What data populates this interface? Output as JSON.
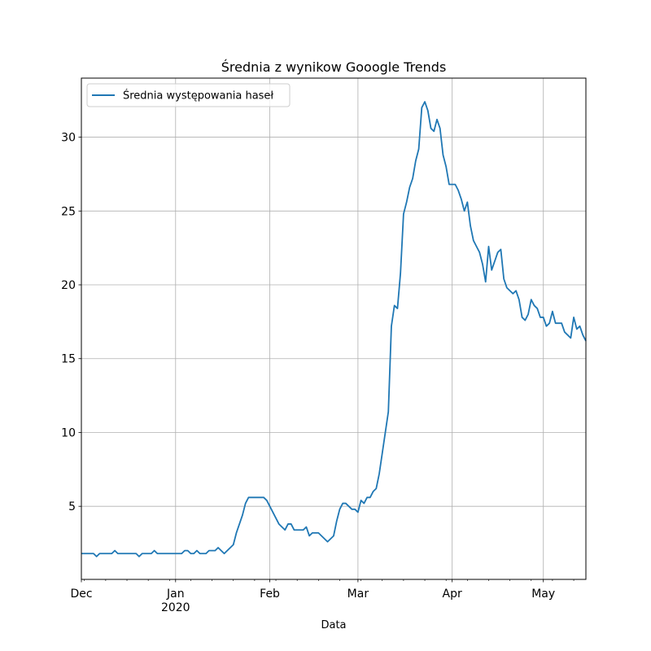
{
  "chart_data": {
    "type": "line",
    "title": "Średnia z wynikow Gooogle Trends",
    "xlabel": "Data",
    "ylabel": "",
    "xlim": [
      "2019-12-01",
      "2020-05-15"
    ],
    "ylim": [
      0.05,
      34
    ],
    "yticks": [
      5,
      10,
      15,
      20,
      25,
      30
    ],
    "xticks": [
      {
        "date": "2019-12-01",
        "label": "Dec",
        "sublabel": ""
      },
      {
        "date": "2020-01-01",
        "label": "Jan",
        "sublabel": "2020"
      },
      {
        "date": "2020-02-01",
        "label": "Feb",
        "sublabel": ""
      },
      {
        "date": "2020-03-01",
        "label": "Mar",
        "sublabel": ""
      },
      {
        "date": "2020-04-01",
        "label": "Apr",
        "sublabel": ""
      },
      {
        "date": "2020-05-01",
        "label": "May",
        "sublabel": ""
      }
    ],
    "grid": true,
    "legend_position": "top-left",
    "series": [
      {
        "name": "Średnia występowania haseł",
        "color": "#1f77b4",
        "points": [
          [
            "2019-12-01",
            1.8
          ],
          [
            "2019-12-03",
            1.8
          ],
          [
            "2019-12-05",
            1.8
          ],
          [
            "2019-12-06",
            1.6
          ],
          [
            "2019-12-07",
            1.8
          ],
          [
            "2019-12-09",
            1.8
          ],
          [
            "2019-12-11",
            1.8
          ],
          [
            "2019-12-12",
            2.0
          ],
          [
            "2019-12-13",
            1.8
          ],
          [
            "2019-12-15",
            1.8
          ],
          [
            "2019-12-17",
            1.8
          ],
          [
            "2019-12-19",
            1.8
          ],
          [
            "2019-12-20",
            1.6
          ],
          [
            "2019-12-21",
            1.8
          ],
          [
            "2019-12-23",
            1.8
          ],
          [
            "2019-12-24",
            1.8
          ],
          [
            "2019-12-25",
            2.0
          ],
          [
            "2019-12-26",
            1.8
          ],
          [
            "2019-12-28",
            1.8
          ],
          [
            "2019-12-30",
            1.8
          ],
          [
            "2020-01-01",
            1.8
          ],
          [
            "2020-01-03",
            1.8
          ],
          [
            "2020-01-04",
            2.0
          ],
          [
            "2020-01-05",
            2.0
          ],
          [
            "2020-01-06",
            1.8
          ],
          [
            "2020-01-07",
            1.8
          ],
          [
            "2020-01-08",
            2.0
          ],
          [
            "2020-01-09",
            1.8
          ],
          [
            "2020-01-11",
            1.8
          ],
          [
            "2020-01-12",
            2.0
          ],
          [
            "2020-01-14",
            2.0
          ],
          [
            "2020-01-15",
            2.2
          ],
          [
            "2020-01-17",
            1.8
          ],
          [
            "2020-01-19",
            2.2
          ],
          [
            "2020-01-20",
            2.4
          ],
          [
            "2020-01-21",
            3.2
          ],
          [
            "2020-01-22",
            3.8
          ],
          [
            "2020-01-23",
            4.4
          ],
          [
            "2020-01-24",
            5.2
          ],
          [
            "2020-01-25",
            5.6
          ],
          [
            "2020-01-27",
            5.6
          ],
          [
            "2020-01-29",
            5.6
          ],
          [
            "2020-01-30",
            5.6
          ],
          [
            "2020-01-31",
            5.4
          ],
          [
            "2020-02-01",
            5.0
          ],
          [
            "2020-02-02",
            4.6
          ],
          [
            "2020-02-03",
            4.2
          ],
          [
            "2020-02-04",
            3.8
          ],
          [
            "2020-02-06",
            3.4
          ],
          [
            "2020-02-07",
            3.8
          ],
          [
            "2020-02-08",
            3.8
          ],
          [
            "2020-02-09",
            3.4
          ],
          [
            "2020-02-10",
            3.4
          ],
          [
            "2020-02-12",
            3.4
          ],
          [
            "2020-02-13",
            3.6
          ],
          [
            "2020-02-14",
            3.0
          ],
          [
            "2020-02-15",
            3.2
          ],
          [
            "2020-02-17",
            3.2
          ],
          [
            "2020-02-18",
            3.0
          ],
          [
            "2020-02-20",
            2.6
          ],
          [
            "2020-02-22",
            3.0
          ],
          [
            "2020-02-23",
            4.0
          ],
          [
            "2020-02-24",
            4.8
          ],
          [
            "2020-02-25",
            5.2
          ],
          [
            "2020-02-26",
            5.2
          ],
          [
            "2020-02-27",
            5.0
          ],
          [
            "2020-02-28",
            4.8
          ],
          [
            "2020-02-29",
            4.8
          ],
          [
            "2020-03-01",
            4.6
          ],
          [
            "2020-03-02",
            5.4
          ],
          [
            "2020-03-03",
            5.2
          ],
          [
            "2020-03-04",
            5.6
          ],
          [
            "2020-03-05",
            5.6
          ],
          [
            "2020-03-06",
            6.0
          ],
          [
            "2020-03-07",
            6.2
          ],
          [
            "2020-03-08",
            7.2
          ],
          [
            "2020-03-09",
            8.6
          ],
          [
            "2020-03-10",
            10.0
          ],
          [
            "2020-03-11",
            11.4
          ],
          [
            "2020-03-12",
            17.2
          ],
          [
            "2020-03-13",
            18.6
          ],
          [
            "2020-03-14",
            18.4
          ],
          [
            "2020-03-15",
            20.8
          ],
          [
            "2020-03-16",
            24.8
          ],
          [
            "2020-03-17",
            25.6
          ],
          [
            "2020-03-18",
            26.6
          ],
          [
            "2020-03-19",
            27.2
          ],
          [
            "2020-03-20",
            28.4
          ],
          [
            "2020-03-21",
            29.2
          ],
          [
            "2020-03-22",
            32.0
          ],
          [
            "2020-03-23",
            32.4
          ],
          [
            "2020-03-24",
            31.8
          ],
          [
            "2020-03-25",
            30.6
          ],
          [
            "2020-03-26",
            30.4
          ],
          [
            "2020-03-27",
            31.2
          ],
          [
            "2020-03-28",
            30.6
          ],
          [
            "2020-03-29",
            28.8
          ],
          [
            "2020-03-30",
            28.0
          ],
          [
            "2020-03-31",
            26.8
          ],
          [
            "2020-04-02",
            26.8
          ],
          [
            "2020-04-03",
            26.4
          ],
          [
            "2020-04-04",
            25.8
          ],
          [
            "2020-04-05",
            25.0
          ],
          [
            "2020-04-06",
            25.6
          ],
          [
            "2020-04-07",
            24.0
          ],
          [
            "2020-04-08",
            23.0
          ],
          [
            "2020-04-09",
            22.6
          ],
          [
            "2020-04-10",
            22.2
          ],
          [
            "2020-04-11",
            21.4
          ],
          [
            "2020-04-12",
            20.2
          ],
          [
            "2020-04-13",
            22.6
          ],
          [
            "2020-04-14",
            21.0
          ],
          [
            "2020-04-15",
            21.6
          ],
          [
            "2020-04-16",
            22.2
          ],
          [
            "2020-04-17",
            22.4
          ],
          [
            "2020-04-18",
            20.4
          ],
          [
            "2020-04-19",
            19.8
          ],
          [
            "2020-04-21",
            19.4
          ],
          [
            "2020-04-22",
            19.6
          ],
          [
            "2020-04-23",
            19.0
          ],
          [
            "2020-04-24",
            17.8
          ],
          [
            "2020-04-25",
            17.6
          ],
          [
            "2020-04-26",
            18.0
          ],
          [
            "2020-04-27",
            19.0
          ],
          [
            "2020-04-28",
            18.6
          ],
          [
            "2020-04-29",
            18.4
          ],
          [
            "2020-04-30",
            17.8
          ],
          [
            "2020-05-01",
            17.8
          ],
          [
            "2020-05-02",
            17.2
          ],
          [
            "2020-05-03",
            17.4
          ],
          [
            "2020-05-04",
            18.2
          ],
          [
            "2020-05-05",
            17.4
          ],
          [
            "2020-05-07",
            17.4
          ],
          [
            "2020-05-08",
            16.8
          ],
          [
            "2020-05-10",
            16.4
          ],
          [
            "2020-05-11",
            17.8
          ],
          [
            "2020-05-12",
            17.0
          ],
          [
            "2020-05-13",
            17.2
          ],
          [
            "2020-05-14",
            16.6
          ],
          [
            "2020-05-15",
            16.2
          ]
        ]
      }
    ]
  }
}
